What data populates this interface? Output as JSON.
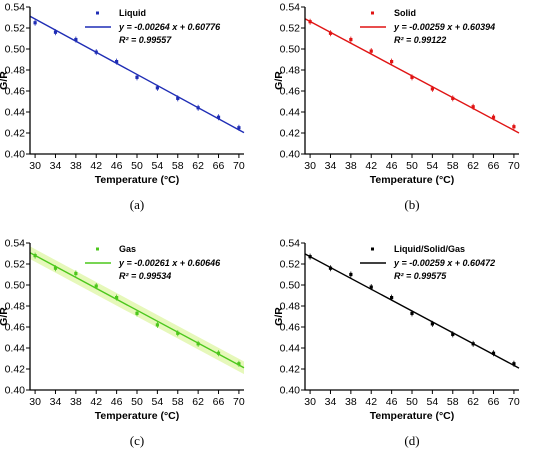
{
  "chart_data": [
    {
      "type": "scatter",
      "caption": "(a)",
      "xlabel": "Temperature (°C)",
      "ylabel": "G/R",
      "xlim": [
        29,
        71
      ],
      "ylim": [
        0.4,
        0.54
      ],
      "xticks": [
        30,
        34,
        38,
        42,
        46,
        50,
        54,
        58,
        62,
        66,
        70
      ],
      "yticks": [
        0.4,
        0.42,
        0.44,
        0.46,
        0.48,
        0.5,
        0.52,
        0.54
      ],
      "legend_position": "top-right",
      "color": "#1f2db5",
      "fill": "",
      "series": [
        {
          "name": "Liquid",
          "x": [
            30,
            34,
            38,
            42,
            46,
            50,
            54,
            58,
            62,
            66,
            70
          ],
          "y": [
            0.525,
            0.516,
            0.509,
            0.497,
            0.488,
            0.473,
            0.463,
            0.453,
            0.444,
            0.435,
            0.425
          ]
        }
      ],
      "fit": {
        "slope": -0.00264,
        "intercept": 0.60776,
        "equation": "y = -0.00264 x + 0.60776",
        "r2_label": "R² = 0.99557"
      }
    },
    {
      "type": "scatter",
      "caption": "(b)",
      "xlabel": "Temperature (°C)",
      "ylabel": "G/R",
      "xlim": [
        29,
        71
      ],
      "ylim": [
        0.4,
        0.54
      ],
      "xticks": [
        30,
        34,
        38,
        42,
        46,
        50,
        54,
        58,
        62,
        66,
        70
      ],
      "yticks": [
        0.4,
        0.42,
        0.44,
        0.46,
        0.48,
        0.5,
        0.52,
        0.54
      ],
      "legend_position": "top-right",
      "color": "#e01414",
      "fill": "",
      "series": [
        {
          "name": "Solid",
          "x": [
            30,
            34,
            38,
            42,
            46,
            50,
            54,
            58,
            62,
            66,
            70
          ],
          "y": [
            0.526,
            0.515,
            0.509,
            0.498,
            0.488,
            0.473,
            0.462,
            0.453,
            0.445,
            0.435,
            0.426
          ]
        }
      ],
      "fit": {
        "slope": -0.00259,
        "intercept": 0.60394,
        "equation": "y = -0.00259 x + 0.60394",
        "r2_label": "R² = 0.99122"
      }
    },
    {
      "type": "scatter",
      "caption": "(c)",
      "xlabel": "Temperature (°C)",
      "ylabel": "G/R",
      "xlim": [
        29,
        71
      ],
      "ylim": [
        0.4,
        0.54
      ],
      "xticks": [
        30,
        34,
        38,
        42,
        46,
        50,
        54,
        58,
        62,
        66,
        70
      ],
      "yticks": [
        0.4,
        0.42,
        0.44,
        0.46,
        0.48,
        0.5,
        0.52,
        0.54
      ],
      "legend_position": "top-right",
      "color": "#4cc71c",
      "fill": "#e3f7b2",
      "series": [
        {
          "name": "Gas",
          "x": [
            30,
            34,
            38,
            42,
            46,
            50,
            54,
            58,
            62,
            66,
            70
          ],
          "y": [
            0.528,
            0.516,
            0.511,
            0.499,
            0.488,
            0.473,
            0.462,
            0.454,
            0.444,
            0.435,
            0.425
          ]
        }
      ],
      "fit": {
        "slope": -0.00261,
        "intercept": 0.60646,
        "equation": "y = -0.00261 x + 0.60646",
        "r2_label": "R² = 0.99534"
      }
    },
    {
      "type": "scatter",
      "caption": "(d)",
      "xlabel": "Temperature (°C)",
      "ylabel": "G/R",
      "xlim": [
        29,
        71
      ],
      "ylim": [
        0.4,
        0.54
      ],
      "xticks": [
        30,
        34,
        38,
        42,
        46,
        50,
        54,
        58,
        62,
        66,
        70
      ],
      "yticks": [
        0.4,
        0.42,
        0.44,
        0.46,
        0.48,
        0.5,
        0.52,
        0.54
      ],
      "legend_position": "top-right",
      "color": "#000000",
      "fill": "",
      "series": [
        {
          "name": "Liquid/Solid/Gas",
          "x": [
            30,
            34,
            38,
            42,
            46,
            50,
            54,
            58,
            62,
            66,
            70
          ],
          "y": [
            0.527,
            0.516,
            0.51,
            0.498,
            0.488,
            0.473,
            0.463,
            0.453,
            0.444,
            0.435,
            0.425
          ]
        }
      ],
      "fit": {
        "slope": -0.00259,
        "intercept": 0.60472,
        "equation": "y = -0.00259 x + 0.60472",
        "r2_label": "R² = 0.99575"
      }
    }
  ]
}
